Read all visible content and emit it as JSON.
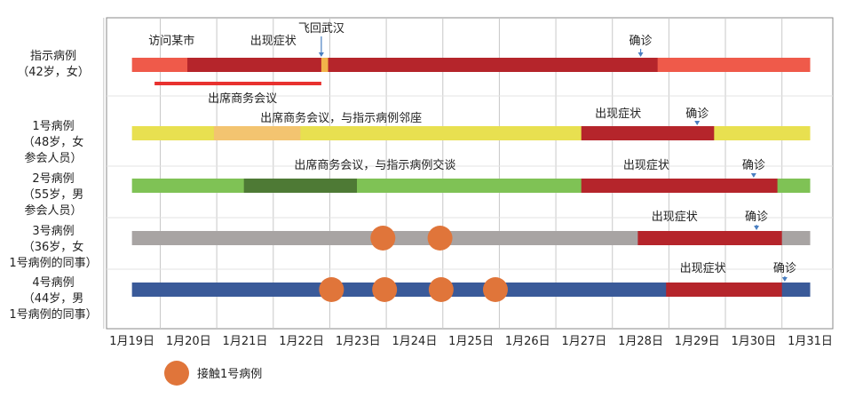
{
  "chart_data": {
    "type": "timeline",
    "x_ticks": [
      "1月19日",
      "1月20日",
      "1月21日",
      "1月22日",
      "1月23日",
      "1月24日",
      "1月25日",
      "1月26日",
      "1月27日",
      "1月28日",
      "1月29日",
      "1月30日",
      "1月31日"
    ],
    "grid": true,
    "cases": [
      {
        "id": "index",
        "label_lines": [
          "指示病例",
          "（42岁，女）"
        ],
        "bar_color": "#ef5a4a",
        "segments": [
          {
            "start": 1.0,
            "end": 13.0,
            "color": "#ef5a4a"
          },
          {
            "start": 1.98,
            "end": 10.3,
            "color": "#b5252b"
          },
          {
            "start": 4.35,
            "end": 4.47,
            "color": "#f2b34a"
          }
        ],
        "annotations": [
          {
            "text": "访问某市",
            "x": 1.7
          },
          {
            "text": "出现症状",
            "x": 3.5
          },
          {
            "text": "飞回武汉",
            "x": 4.35,
            "arrow": true
          },
          {
            "text": "确诊",
            "x": 10.0,
            "arrow": true
          }
        ],
        "extra_line": {
          "start": 1.4,
          "end": 4.35,
          "color": "#e8312f"
        },
        "extra_line_label": "出席商务会议"
      },
      {
        "id": "case1",
        "label_lines": [
          "1号病例",
          "（48岁，女",
          "参会人员）"
        ],
        "bar_color": "#e8e050",
        "segments": [
          {
            "start": 1.0,
            "end": 13.0,
            "color": "#e8e050"
          },
          {
            "start": 2.45,
            "end": 3.98,
            "color": "#f3c470"
          },
          {
            "start": 8.95,
            "end": 11.3,
            "color": "#b5252b"
          }
        ],
        "annotations": [
          {
            "text": "出席商务会议，与指示病例邻座",
            "x": 4.7
          },
          {
            "text": "出现症状",
            "x": 9.6
          },
          {
            "text": "确诊",
            "x": 11.0,
            "arrow": true
          }
        ]
      },
      {
        "id": "case2",
        "label_lines": [
          "2号病例",
          "（55岁，男",
          "参会人员）"
        ],
        "bar_color": "#7fc255",
        "segments": [
          {
            "start": 1.0,
            "end": 13.0,
            "color": "#7fc255"
          },
          {
            "start": 2.98,
            "end": 4.98,
            "color": "#4e7a35"
          },
          {
            "start": 8.95,
            "end": 12.42,
            "color": "#b5252b"
          }
        ],
        "annotations": [
          {
            "text": "出席商务会议，与指示病例交谈",
            "x": 5.3
          },
          {
            "text": "出现症状",
            "x": 10.1
          },
          {
            "text": "确诊",
            "x": 12.0,
            "arrow": true
          }
        ]
      },
      {
        "id": "case3",
        "label_lines": [
          "3号病例",
          "（36岁，女",
          "1号病例的同事）"
        ],
        "bar_color": "#a8a4a3",
        "segments": [
          {
            "start": 1.0,
            "end": 13.0,
            "color": "#a8a4a3"
          },
          {
            "start": 9.95,
            "end": 12.5,
            "color": "#b5252b"
          }
        ],
        "contacts": [
          5.44,
          6.45
        ],
        "annotations": [
          {
            "text": "出现症状",
            "x": 10.6
          },
          {
            "text": "确诊",
            "x": 12.05,
            "arrow": true
          }
        ]
      },
      {
        "id": "case4",
        "label_lines": [
          "4号病例",
          "（44岁，男",
          "1号病例的同事）"
        ],
        "bar_color": "#3a5a99",
        "segments": [
          {
            "start": 1.0,
            "end": 13.0,
            "color": "#3a5a99"
          },
          {
            "start": 10.45,
            "end": 12.5,
            "color": "#b5252b"
          }
        ],
        "contacts": [
          4.53,
          5.47,
          6.47,
          7.43
        ],
        "annotations": [
          {
            "text": "出现症状",
            "x": 11.1
          },
          {
            "text": "确诊",
            "x": 12.55,
            "arrow": true
          }
        ]
      }
    ],
    "legend": {
      "label": "接触1号病例",
      "color": "#e0753a",
      "position": "bottom-left"
    }
  }
}
